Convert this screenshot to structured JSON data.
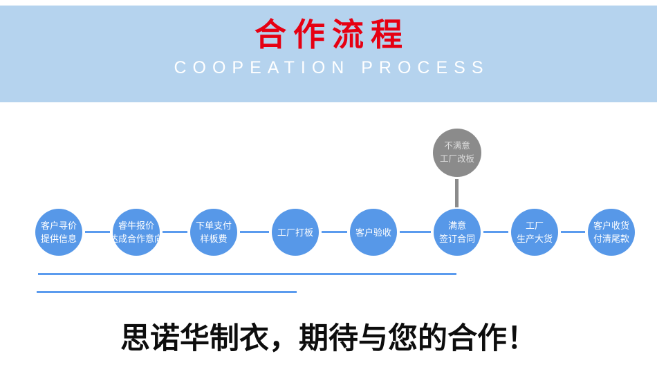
{
  "banner": {
    "title": "合作流程",
    "subtitle": "COOPEATION PROCESS"
  },
  "flow": {
    "steps": [
      {
        "lines": [
          "客户寻价",
          "提供信息"
        ]
      },
      {
        "lines": [
          "睿牛报价",
          "达成合作意向"
        ]
      },
      {
        "lines": [
          "下单支付",
          "样板费"
        ]
      },
      {
        "lines": [
          "工厂打板"
        ]
      },
      {
        "lines": [
          "客户验收"
        ]
      },
      {
        "lines": [
          "满意",
          "签订合同"
        ]
      },
      {
        "lines": [
          "工厂",
          "生产大货"
        ]
      },
      {
        "lines": [
          "客户收货",
          "付清尾款"
        ]
      }
    ],
    "reject_step": {
      "lines": [
        "不满意",
        "工厂改板"
      ]
    }
  },
  "footer": {
    "slogan": "思诺华制衣，期待与您的合作！"
  },
  "colors": {
    "banner_bg": "#b5d3ee",
    "title_red": "#e60012",
    "subtitle_white": "#ffffff",
    "circle_blue": "#5798e8",
    "line_blue": "#5b9bee",
    "gray_circle": "#8b8b8b",
    "gray_text": "#dcdcdc",
    "footer_text": "#0d0d0d"
  }
}
